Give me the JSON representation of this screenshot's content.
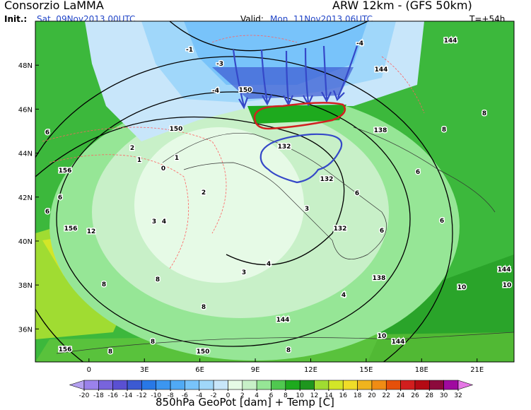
{
  "header": {
    "title": "Consorzio LaMMA",
    "model": "ARW 12km - (GFS 50km)",
    "init_label": "Init.:",
    "init": "Sat, 09Nov2013 00UTC",
    "valid_label": "Valid:",
    "valid": "Mon, 11Nov2013 06UTC",
    "lead": "T=+54h"
  },
  "map": {
    "lonlim": [
      -2.9,
      23
    ],
    "latlim": [
      34.5,
      50
    ],
    "lon_ticks": [
      0,
      {
        "value": 3,
        "label": "3E"
      },
      {
        "value": 6,
        "label": "6E"
      },
      {
        "value": 9,
        "label": "9E"
      },
      {
        "value": 12,
        "label": "12E"
      },
      {
        "value": 15,
        "label": "15E"
      },
      {
        "value": 18,
        "label": "18E"
      },
      {
        "value": 21,
        "label": "21E"
      }
    ],
    "lat_ticks": [
      {
        "value": 48,
        "label": "48N"
      },
      {
        "value": 46,
        "label": "46N"
      },
      {
        "value": 44,
        "label": "44N"
      },
      {
        "value": 42,
        "label": "42N"
      },
      {
        "value": 40,
        "label": "40N"
      },
      {
        "value": 38,
        "label": "38N"
      },
      {
        "value": 36,
        "label": "36N"
      }
    ],
    "contour_labels": [
      -1,
      -3,
      -4,
      150,
      150,
      156,
      156,
      156,
      150,
      144,
      144,
      144,
      144,
      144,
      138,
      138,
      132,
      132,
      132,
      6,
      6,
      6,
      8,
      8,
      8,
      8,
      8,
      8,
      8,
      8,
      10,
      10,
      10,
      12,
      2,
      2,
      3,
      3,
      3,
      4,
      4,
      4,
      6,
      6,
      6,
      6,
      -4,
      1,
      0,
      1
    ]
  },
  "colorbar": {
    "ticks": [
      -20,
      -18,
      -16,
      -14,
      -12,
      -10,
      -8,
      -6,
      -4,
      -2,
      0,
      2,
      4,
      6,
      8,
      10,
      12,
      14,
      16,
      18,
      20,
      22,
      24,
      26,
      28,
      30,
      32
    ],
    "colors": [
      "#b4a0f0",
      "#9b82eb",
      "#7864dc",
      "#5a50d2",
      "#3c5ad2",
      "#2878e6",
      "#3c96f0",
      "#50aaf5",
      "#78c3fa",
      "#a0d7fa",
      "#c8e6fa",
      "#e6fae6",
      "#c8f0c8",
      "#96e696",
      "#50c850",
      "#1eaa1e",
      "#1e961e",
      "#a0dc32",
      "#d2e628",
      "#f0dc28",
      "#f0b41e",
      "#f08c14",
      "#e6500a",
      "#d21e1e",
      "#b40a14",
      "#8c0a3c",
      "#a00aa0",
      "#e678e6"
    ]
  },
  "footer": {
    "caption": "850hPa GeoPot [dam] + Temp [C]"
  }
}
